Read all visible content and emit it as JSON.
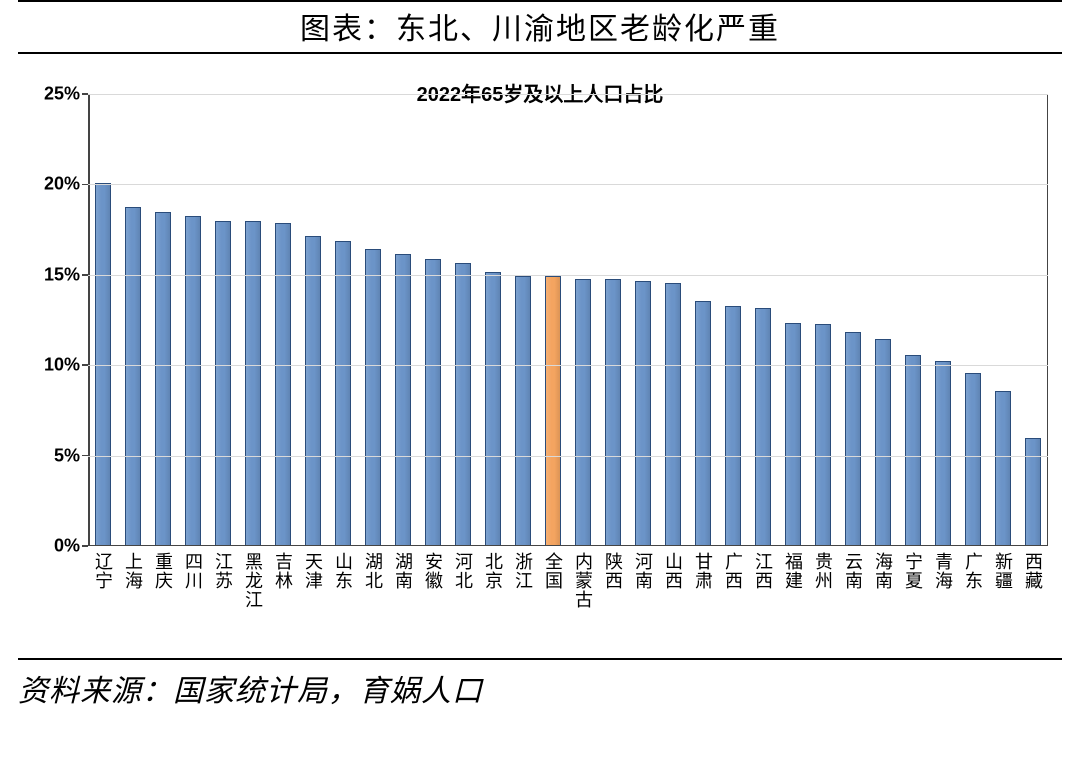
{
  "header_title": "图表：东北、川渝地区老龄化严重",
  "source_text": "资料来源：国家统计局，育娲人口",
  "chart": {
    "type": "bar",
    "title": "2022年65岁及以上人口占比",
    "title_fontsize": 20,
    "y_axis": {
      "min": 0,
      "max": 25,
      "tick_step": 5,
      "tick_suffix": "%",
      "ticks": [
        0,
        5,
        10,
        15,
        20,
        25
      ],
      "label_fontsize": 18,
      "grid_color": "#d9d9d9",
      "axis_color": "#444444"
    },
    "bar_width_ratio": 0.56,
    "default_bar_color": "#6b94c8",
    "highlight_bar_color": "#f4a460",
    "bar_border_color": "#2a4c7a",
    "background_color": "#ffffff",
    "categories": [
      "辽宁",
      "上海",
      "重庆",
      "四川",
      "江苏",
      "黑龙江",
      "吉林",
      "天津",
      "山东",
      "湖北",
      "湖南",
      "安徽",
      "河北",
      "北京",
      "浙江",
      "全国",
      "内蒙古",
      "陕西",
      "河南",
      "山西",
      "甘肃",
      "广西",
      "江西",
      "福建",
      "贵州",
      "云南",
      "海南",
      "宁夏",
      "青海",
      "广东",
      "新疆",
      "西藏"
    ],
    "values": [
      20.0,
      18.7,
      18.4,
      18.2,
      17.9,
      17.9,
      17.8,
      17.1,
      16.8,
      16.4,
      16.1,
      15.8,
      15.6,
      15.1,
      14.9,
      14.9,
      14.7,
      14.7,
      14.6,
      14.5,
      13.5,
      13.2,
      13.1,
      12.3,
      12.2,
      11.8,
      11.4,
      10.5,
      10.2,
      9.5,
      8.5,
      5.9
    ],
    "highlight_category": "全国"
  }
}
